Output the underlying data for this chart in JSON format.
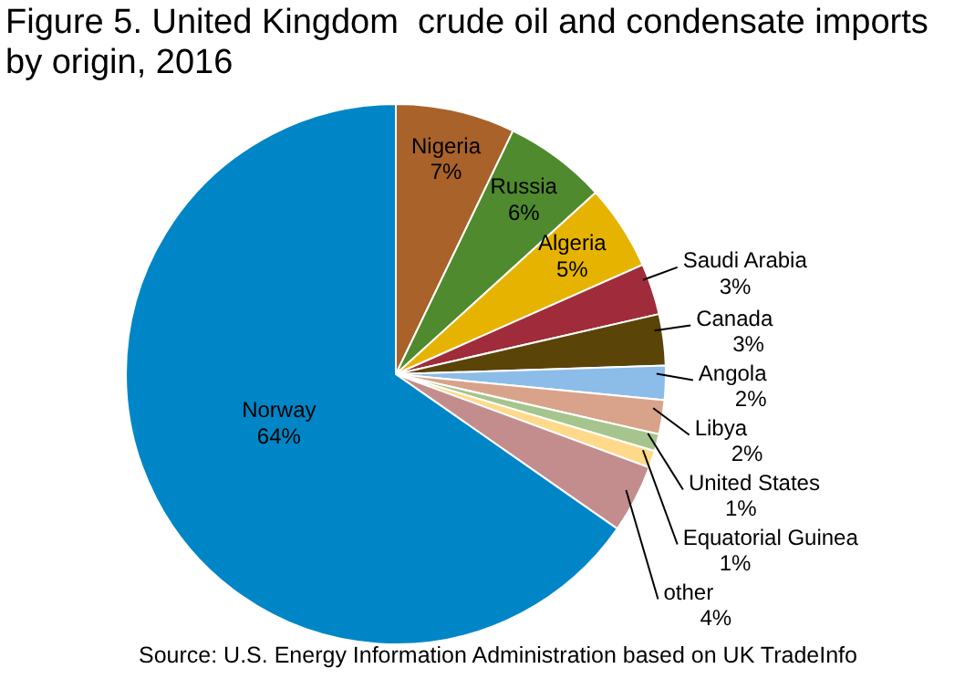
{
  "chart_data": {
    "type": "pie",
    "title": "Figure 5. United Kingdom  crude oil and condensate imports by origin, 2016",
    "categories": [
      "Nigeria",
      "Russia",
      "Algeria",
      "Saudi Arabia",
      "Canada",
      "Angola",
      "Libya",
      "United States",
      "Equatorial Guinea",
      "other",
      "Norway"
    ],
    "values": [
      7,
      6,
      5,
      3,
      3,
      2,
      2,
      1,
      1,
      4,
      64
    ],
    "value_labels": [
      "7%",
      "6%",
      "5%",
      "3%",
      "3%",
      "2%",
      "2%",
      "1%",
      "1%",
      "4%",
      "64%"
    ],
    "colors": [
      "#a8622a",
      "#4f8a2e",
      "#e6b400",
      "#a02b3a",
      "#5a4408",
      "#8cbde9",
      "#d8a38a",
      "#a6c48e",
      "#ffd98a",
      "#c48d8d",
      "#0086c6"
    ],
    "annotations": [
      "Source: U.S. Energy Information Administration based on UK TradeInfo"
    ]
  }
}
